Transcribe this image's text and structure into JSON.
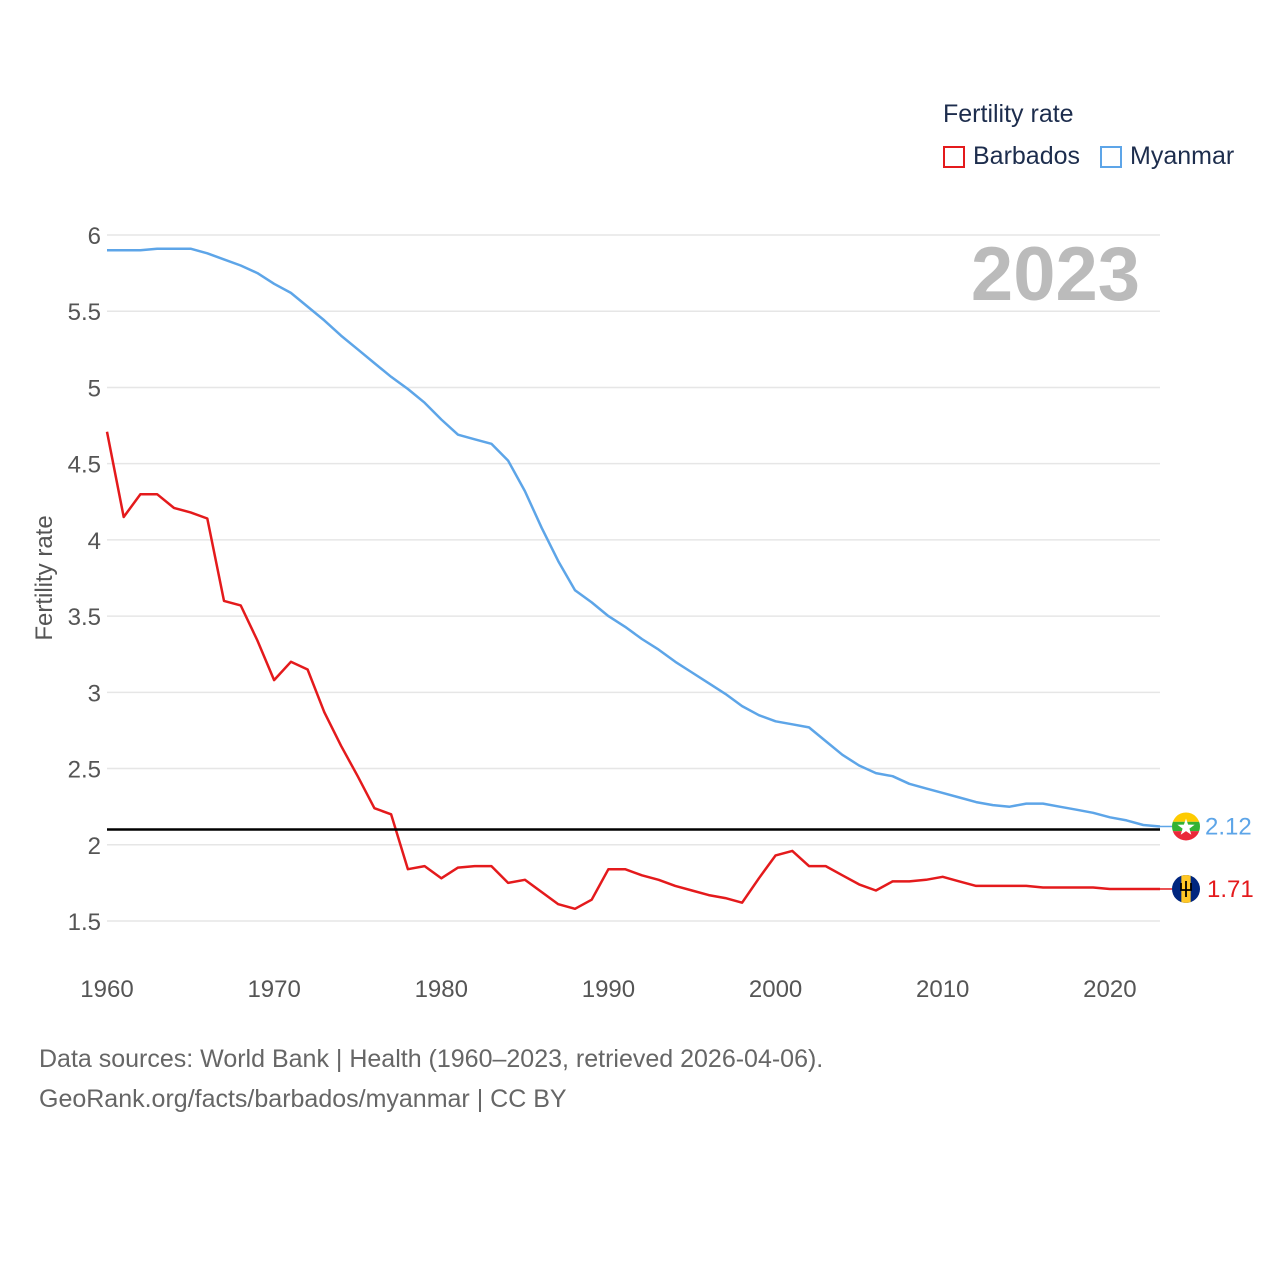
{
  "legend": {
    "title": "Fertility rate",
    "items": [
      {
        "label": "Barbados",
        "color": "#e41a1c"
      },
      {
        "label": "Myanmar",
        "color": "#5da5e8"
      }
    ]
  },
  "footer": {
    "line1": "Data sources: World Bank | Health (1960–2023, retrieved 2026-04-06).",
    "line2": "GeoRank.org/facts/barbados/myanmar | CC BY"
  },
  "chart_data": {
    "type": "line",
    "year_label": "2023",
    "ylabel": "Fertility rate",
    "xlim": [
      1960,
      2023
    ],
    "ylim": [
      1.5,
      6
    ],
    "x_ticks": [
      1960,
      1970,
      1980,
      1990,
      2000,
      2010,
      2020
    ],
    "y_ticks": [
      1.5,
      2,
      2.5,
      3,
      3.5,
      4,
      4.5,
      5,
      5.5,
      6
    ],
    "y_tick_labels": [
      "1.5",
      "2",
      "2.5",
      "3",
      "3.5",
      "4",
      "4.5",
      "5",
      "5.5",
      "6"
    ],
    "reference_line": 2.1,
    "end_labels": [
      "2.12",
      "1.71"
    ],
    "x": [
      1960,
      1961,
      1962,
      1963,
      1964,
      1965,
      1966,
      1967,
      1968,
      1969,
      1970,
      1971,
      1972,
      1973,
      1974,
      1975,
      1976,
      1977,
      1978,
      1979,
      1980,
      1981,
      1982,
      1983,
      1984,
      1985,
      1986,
      1987,
      1988,
      1989,
      1990,
      1991,
      1992,
      1993,
      1994,
      1995,
      1996,
      1997,
      1998,
      1999,
      2000,
      2001,
      2002,
      2003,
      2004,
      2005,
      2006,
      2007,
      2008,
      2009,
      2010,
      2011,
      2012,
      2013,
      2014,
      2015,
      2016,
      2017,
      2018,
      2019,
      2020,
      2021,
      2022,
      2023
    ],
    "series": [
      {
        "name": "Barbados",
        "color": "#e41a1c",
        "values": [
          4.71,
          4.15,
          4.3,
          4.3,
          4.21,
          4.18,
          4.14,
          3.6,
          3.57,
          3.34,
          3.08,
          3.2,
          3.15,
          2.87,
          2.65,
          2.45,
          2.24,
          2.2,
          1.84,
          1.86,
          1.78,
          1.85,
          1.86,
          1.86,
          1.75,
          1.77,
          1.69,
          1.61,
          1.58,
          1.64,
          1.84,
          1.84,
          1.8,
          1.77,
          1.73,
          1.7,
          1.67,
          1.65,
          1.62,
          1.78,
          1.93,
          1.96,
          1.86,
          1.86,
          1.8,
          1.74,
          1.7,
          1.76,
          1.76,
          1.77,
          1.79,
          1.76,
          1.73,
          1.73,
          1.73,
          1.73,
          1.72,
          1.72,
          1.72,
          1.72,
          1.71,
          1.71,
          1.71,
          1.71
        ]
      },
      {
        "name": "Myanmar",
        "color": "#5da5e8",
        "values": [
          5.9,
          5.9,
          5.9,
          5.91,
          5.91,
          5.91,
          5.88,
          5.84,
          5.8,
          5.75,
          5.68,
          5.62,
          5.53,
          5.44,
          5.34,
          5.25,
          5.16,
          5.07,
          4.99,
          4.9,
          4.79,
          4.69,
          4.66,
          4.63,
          4.52,
          4.32,
          4.08,
          3.86,
          3.67,
          3.59,
          3.5,
          3.43,
          3.35,
          3.28,
          3.2,
          3.13,
          3.06,
          2.99,
          2.91,
          2.85,
          2.81,
          2.79,
          2.77,
          2.68,
          2.59,
          2.52,
          2.47,
          2.45,
          2.4,
          2.37,
          2.34,
          2.31,
          2.28,
          2.26,
          2.25,
          2.27,
          2.27,
          2.25,
          2.23,
          2.21,
          2.18,
          2.16,
          2.13,
          2.12
        ]
      }
    ]
  }
}
